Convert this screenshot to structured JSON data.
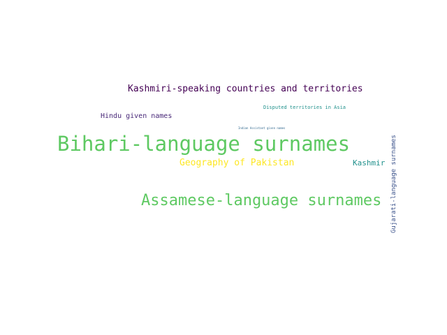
{
  "words": {
    "bihari": {
      "text": "Bihari-language surnames",
      "color": "#5ec962"
    },
    "assamese": {
      "text": "Assamese-language surnames",
      "color": "#5ec962"
    },
    "kashmiri_c": {
      "text": "Kashmiri-speaking countries and territories",
      "color": "#440154"
    },
    "geography": {
      "text": "Geography of Pakistan",
      "color": "#fde725"
    },
    "kashmir": {
      "text": "Kashmir",
      "color": "#21918c"
    },
    "hindu": {
      "text": "Hindu given names",
      "color": "#482878"
    },
    "disputed": {
      "text": "Disputed territories in Asia",
      "color": "#21918c"
    },
    "indian": {
      "text": "Indian Assistant given names",
      "color": "#31688e"
    },
    "gujarati": {
      "text": "Gujarati-language surnames",
      "color": "#3b528b"
    }
  }
}
